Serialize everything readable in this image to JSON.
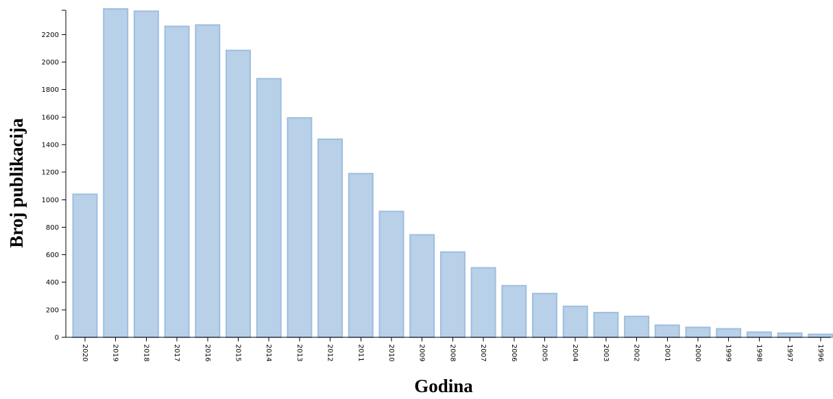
{
  "chart_data": {
    "type": "bar",
    "xlabel": "Godina",
    "ylabel": "Broj publikacija",
    "categories": [
      "2020",
      "2019",
      "2018",
      "2017",
      "2016",
      "2015",
      "2014",
      "2013",
      "2012",
      "2011",
      "2010",
      "2009",
      "2008",
      "2007",
      "2006",
      "2005",
      "2004",
      "2003",
      "2002",
      "2001",
      "2000",
      "1999",
      "1998",
      "1997",
      "1996"
    ],
    "values": [
      1040,
      2390,
      2370,
      2260,
      2270,
      2085,
      1880,
      1595,
      1440,
      1190,
      915,
      745,
      620,
      505,
      375,
      318,
      225,
      180,
      152,
      88,
      72,
      62,
      38,
      30,
      22
    ],
    "ylim": [
      0,
      2380
    ],
    "yticks": [
      0,
      200,
      400,
      600,
      800,
      1000,
      1200,
      1400,
      1600,
      1800,
      2000,
      2200
    ],
    "grid": false,
    "legend": "none",
    "bar_fill": "#b8d0e8",
    "bar_stroke": "#9ebedf"
  }
}
